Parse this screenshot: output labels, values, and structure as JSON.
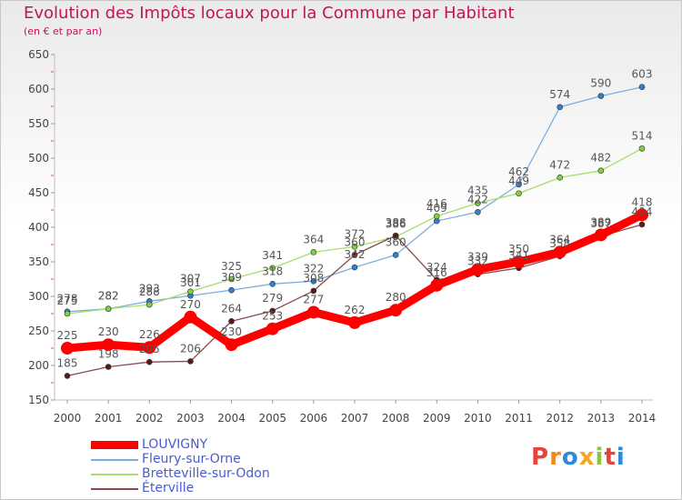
{
  "header": {
    "title": "Evolution des Impôts locaux pour la Commune par Habitant",
    "subtitle": "(en € et par an)"
  },
  "brand": {
    "letters": [
      "P",
      "r",
      "o",
      "x",
      "i",
      "t",
      "i"
    ],
    "colors": [
      "#e8433a",
      "#f08a1c",
      "#2e8ad8",
      "#f5a623",
      "#8cc63f",
      "#e8433a",
      "#2e8ad8"
    ]
  },
  "chart_data": {
    "type": "line",
    "title": "Evolution des Impôts locaux pour la Commune par Habitant",
    "subtitle": "(en € et par an)",
    "x": [
      "2000",
      "2001",
      "2002",
      "2003",
      "2004",
      "2005",
      "2006",
      "2007",
      "2008",
      "2009",
      "2010",
      "2011",
      "2012",
      "2013",
      "2014"
    ],
    "ylim": [
      150,
      650
    ],
    "yticks": [
      150,
      200,
      250,
      300,
      350,
      400,
      450,
      500,
      550,
      600,
      650
    ],
    "grid": false,
    "legend_position": "bottom-left",
    "series": [
      {
        "name": "LOUVIGNY",
        "color": "#ff0000",
        "marker_color": "#ff0000",
        "values": [
          225,
          230,
          226,
          270,
          230,
          253,
          277,
          262,
          280,
          316,
          339,
          350,
          364,
          389,
          418
        ],
        "labels": [
          "225",
          "230",
          "226",
          "270",
          "230",
          "253",
          "277",
          "262",
          "280",
          "316",
          "339",
          "350",
          "364",
          "389",
          "418"
        ]
      },
      {
        "name": "Fleury-sur-Orne",
        "color": "#7aaee0",
        "marker_color": "#2f7fd2",
        "values": [
          278,
          282,
          293,
          301,
          309,
          318,
          322,
          342,
          360,
          409,
          422,
          462,
          574,
          590,
          603
        ],
        "labels": [
          "278",
          "282",
          "293",
          "301",
          "309",
          "318",
          "322",
          "342",
          "360",
          "409",
          "422",
          "462",
          "574",
          "590",
          "603"
        ]
      },
      {
        "name": "Bretteville-sur-Odon",
        "color": "#a6de6b",
        "marker_color": "#7ed33a",
        "values": [
          275,
          282,
          288,
          307,
          325,
          341,
          364,
          372,
          386,
          416,
          435,
          449,
          472,
          482,
          514
        ],
        "labels": [
          "275",
          "282",
          "288",
          "307",
          "325",
          "341",
          "364",
          "372",
          "386",
          "416",
          "435",
          "449",
          "472",
          "482",
          "514"
        ]
      },
      {
        "name": "Éterville",
        "color": "#8a4a4a",
        "marker_color": "#5a1a1a",
        "values": [
          185,
          198,
          205,
          206,
          264,
          279,
          308,
          360,
          388,
          324,
          332,
          341,
          358,
          387,
          404
        ],
        "labels": [
          "185",
          "198",
          "205",
          "206",
          "264",
          "279",
          "308",
          "360",
          "388",
          "324",
          "332",
          "341",
          "358",
          "387",
          "404"
        ]
      }
    ]
  }
}
